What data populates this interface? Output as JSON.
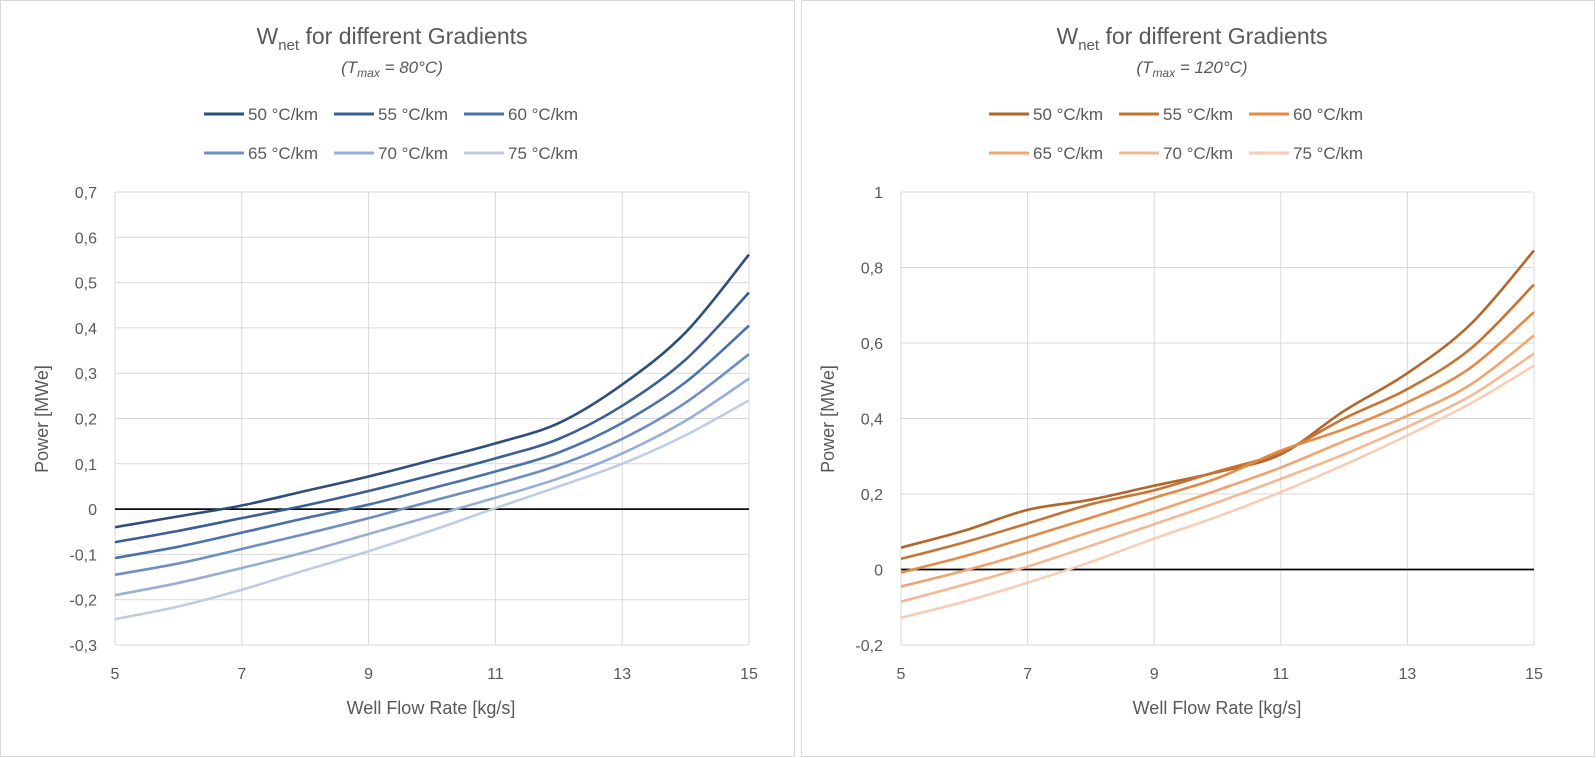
{
  "chart_data": [
    {
      "type": "line",
      "title_main": "W",
      "title_sub": "net",
      "title_rest": " for different Gradients",
      "subtitle_pre": "(T",
      "subtitle_sub": "max",
      "subtitle_post": " = 80°C)",
      "xlabel": "Well Flow Rate [kg/s]",
      "ylabel": "Power [MWe]",
      "xlim": [
        5,
        15
      ],
      "ylim": [
        -0.3,
        0.7
      ],
      "xticks": [
        5,
        7,
        9,
        11,
        13,
        15
      ],
      "xtick_labels": [
        "5",
        "7",
        "9",
        "11",
        "13",
        "15"
      ],
      "yticks": [
        -0.3,
        -0.2,
        -0.1,
        0,
        0.1,
        0.2,
        0.3,
        0.4,
        0.5,
        0.6,
        0.7
      ],
      "ytick_labels": [
        "-0,3",
        "-0,2",
        "-0,1",
        "0",
        "0,1",
        "0,2",
        "0,3",
        "0,4",
        "0,5",
        "0,6",
        "0,7"
      ],
      "grid": true,
      "legend_position": "top",
      "x": [
        5,
        6,
        7,
        8,
        9,
        10,
        11,
        12,
        13,
        14,
        15
      ],
      "series": [
        {
          "name": "50 °C/km",
          "color": "#2e4e7a",
          "values": [
            -0.04,
            -0.016,
            0.008,
            0.04,
            0.072,
            0.108,
            0.145,
            0.19,
            0.275,
            0.39,
            0.562
          ]
        },
        {
          "name": "55 °C/km",
          "color": "#3a5f93",
          "values": [
            -0.073,
            -0.048,
            -0.02,
            0.008,
            0.04,
            0.075,
            0.112,
            0.155,
            0.228,
            0.33,
            0.478
          ]
        },
        {
          "name": "60 °C/km",
          "color": "#4a72aa",
          "values": [
            -0.108,
            -0.083,
            -0.052,
            -0.02,
            0.01,
            0.046,
            0.083,
            0.125,
            0.19,
            0.28,
            0.405
          ]
        },
        {
          "name": "65 °C/km",
          "color": "#6e8fc0",
          "values": [
            -0.145,
            -0.12,
            -0.088,
            -0.055,
            -0.02,
            0.018,
            0.055,
            0.097,
            0.155,
            0.235,
            0.342
          ]
        },
        {
          "name": "70 °C/km",
          "color": "#97afd4",
          "values": [
            -0.19,
            -0.163,
            -0.13,
            -0.095,
            -0.055,
            -0.015,
            0.025,
            0.068,
            0.123,
            0.195,
            0.288
          ]
        },
        {
          "name": "75 °C/km",
          "color": "#bfcde4",
          "values": [
            -0.243,
            -0.215,
            -0.178,
            -0.135,
            -0.093,
            -0.047,
            0.002,
            0.05,
            0.1,
            0.163,
            0.24
          ]
        }
      ]
    },
    {
      "type": "line",
      "title_main": "W",
      "title_sub": "net",
      "title_rest": " for different Gradients",
      "subtitle_pre": "(T",
      "subtitle_sub": "max",
      "subtitle_post": " = 120°C)",
      "xlabel": "Well Flow Rate [kg/s]",
      "ylabel": "Power  [MWe]",
      "xlim": [
        5,
        15
      ],
      "ylim": [
        -0.2,
        1
      ],
      "xticks": [
        5,
        7,
        9,
        11,
        13,
        15
      ],
      "xtick_labels": [
        "5",
        "7",
        "9",
        "11",
        "13",
        "15"
      ],
      "yticks": [
        -0.2,
        0,
        0.2,
        0.4,
        0.6,
        0.8,
        1
      ],
      "ytick_labels": [
        "-0,2",
        "0",
        "0,2",
        "0,4",
        "0,6",
        "0,8",
        "1"
      ],
      "grid": true,
      "legend_position": "top",
      "x": [
        5,
        6,
        7,
        8,
        9,
        10,
        11,
        12,
        13,
        14,
        15
      ],
      "series": [
        {
          "name": "50 °C/km",
          "color": "#b4652a",
          "values": [
            0.058,
            0.103,
            0.158,
            0.185,
            0.222,
            0.258,
            0.305,
            0.42,
            0.52,
            0.65,
            0.845
          ]
        },
        {
          "name": "55 °C/km",
          "color": "#c67432",
          "values": [
            0.028,
            0.072,
            0.122,
            0.173,
            0.21,
            0.26,
            0.31,
            0.4,
            0.478,
            0.585,
            0.755
          ]
        },
        {
          "name": "60 °C/km",
          "color": "#e48a45",
          "values": [
            -0.008,
            0.035,
            0.085,
            0.137,
            0.19,
            0.242,
            0.315,
            0.372,
            0.443,
            0.535,
            0.682
          ]
        },
        {
          "name": "65 °C/km",
          "color": "#f0a470",
          "values": [
            -0.045,
            -0.003,
            0.045,
            0.1,
            0.153,
            0.21,
            0.27,
            0.34,
            0.407,
            0.49,
            0.62
          ]
        },
        {
          "name": "70 °C/km",
          "color": "#f5b894",
          "values": [
            -0.085,
            -0.04,
            0.008,
            0.063,
            0.12,
            0.178,
            0.24,
            0.305,
            0.378,
            0.46,
            0.572
          ]
        },
        {
          "name": "75 °C/km",
          "color": "#f8cdb5",
          "values": [
            -0.128,
            -0.085,
            -0.035,
            0.02,
            0.082,
            0.14,
            0.205,
            0.277,
            0.355,
            0.44,
            0.54
          ]
        }
      ]
    }
  ]
}
